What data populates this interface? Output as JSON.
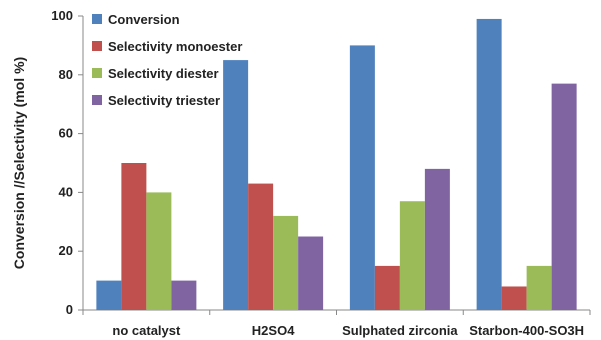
{
  "chart_data": {
    "type": "bar",
    "categories": [
      "no catalyst",
      "H2SO4",
      "Sulphated zirconia",
      "Starbon-400-SO3H"
    ],
    "series": [
      {
        "name": "Conversion",
        "values": [
          10,
          85,
          90,
          99
        ],
        "color": "#4f81bd"
      },
      {
        "name": "Selectivity monoester",
        "values": [
          50,
          43,
          15,
          8
        ],
        "color": "#c0504d"
      },
      {
        "name": "Selectivity diester",
        "values": [
          40,
          32,
          37,
          15
        ],
        "color": "#9bbb59"
      },
      {
        "name": "Selectivity triester",
        "values": [
          10,
          25,
          48,
          77
        ],
        "color": "#8064a2"
      }
    ],
    "title": "",
    "xlabel": "",
    "ylabel": "Conversion //Selectivity (mol %)",
    "ylim": [
      0,
      100
    ],
    "yticks": [
      0,
      20,
      40,
      60,
      80,
      100
    ],
    "grid": false,
    "legend": "top-left"
  }
}
